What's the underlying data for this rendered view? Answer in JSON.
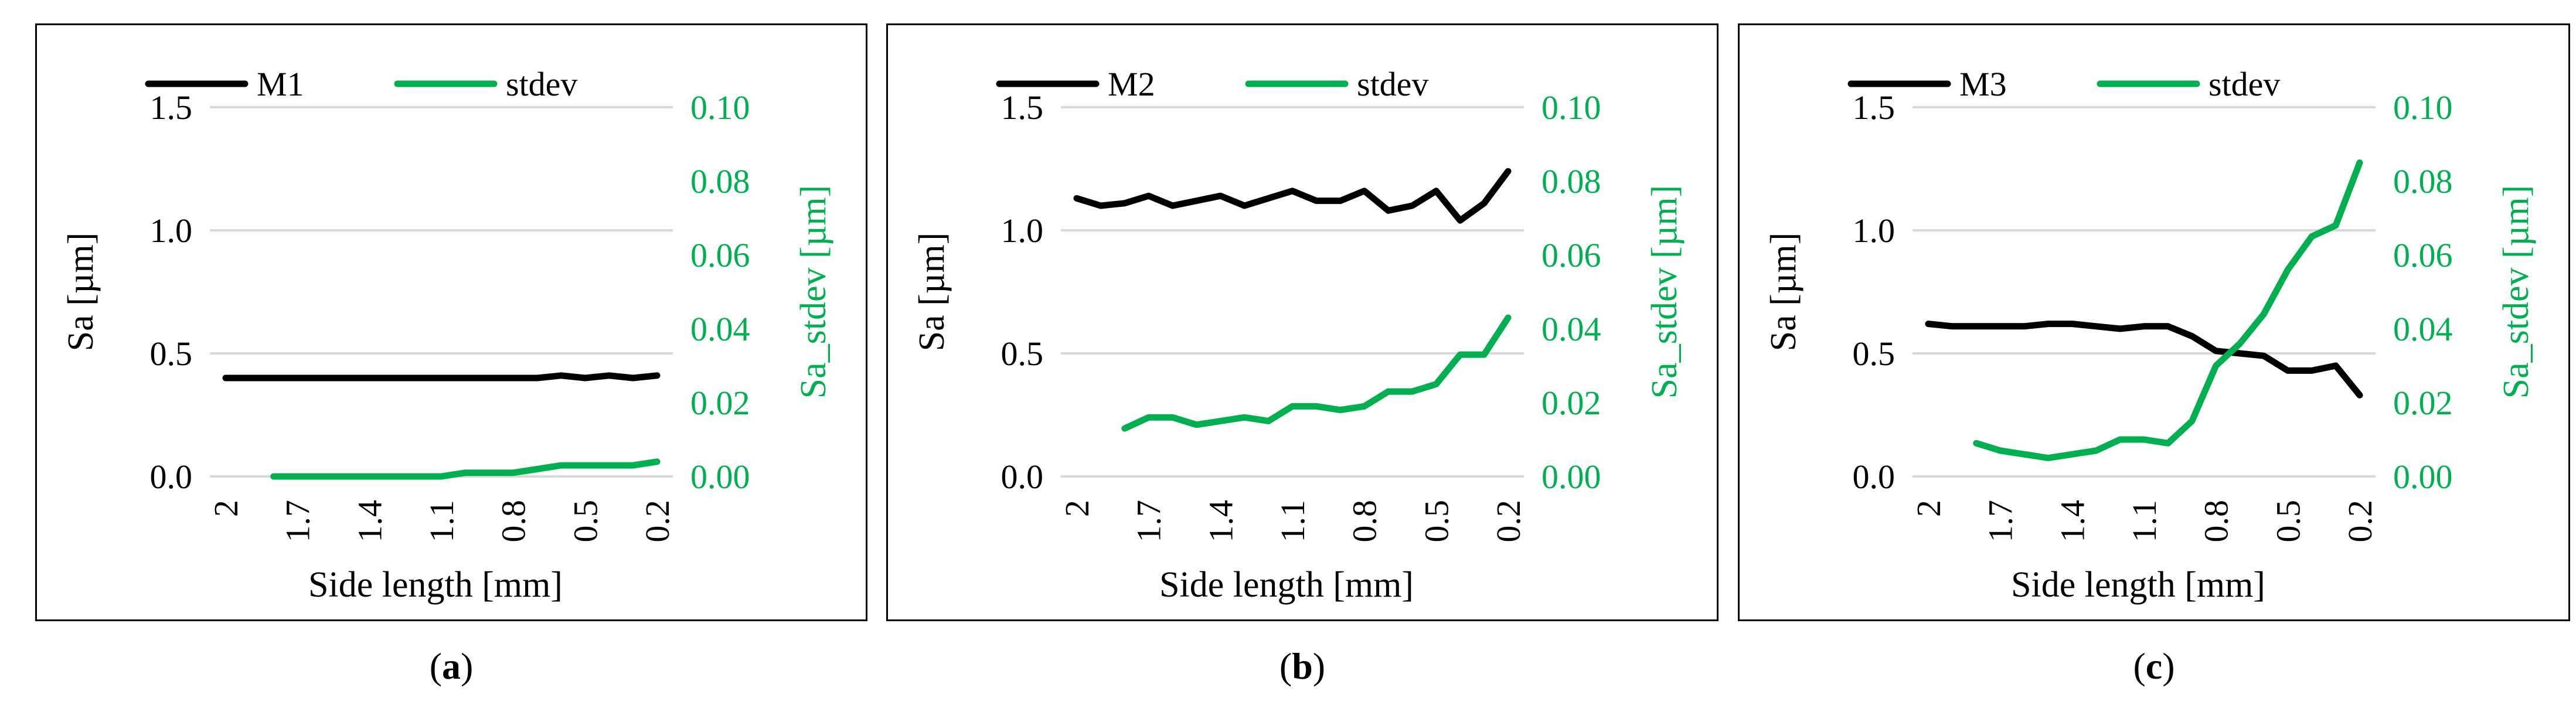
{
  "colors": {
    "main": "#000000",
    "stdev": "#00b050",
    "grid": "#d9d9d9"
  },
  "chart_data": [
    {
      "type": "line",
      "panel": "a",
      "caption": "a",
      "x_ticks": [
        "2",
        "1.7",
        "1.4",
        "1.1",
        "0.8",
        "0.5",
        "0.2"
      ],
      "x": [
        2.0,
        1.9,
        1.8,
        1.7,
        1.6,
        1.5,
        1.4,
        1.3,
        1.2,
        1.1,
        1.0,
        0.9,
        0.8,
        0.7,
        0.6,
        0.5,
        0.4,
        0.3,
        0.2
      ],
      "xlabel": "Side length [mm]",
      "ylabel": "Sa [µm]",
      "ylabel_right": "Sa_stdev [µm]",
      "ylim": [
        0,
        1.5
      ],
      "y_ticks": [
        "0.0",
        "0.5",
        "1.0",
        "1.5"
      ],
      "ylim_right": [
        0,
        0.1
      ],
      "y_ticks_right": [
        "0.00",
        "0.02",
        "0.04",
        "0.06",
        "0.08",
        "0.10"
      ],
      "legend_position": "top",
      "series": [
        {
          "name": "M1",
          "axis": "left",
          "color": "#000000",
          "x": [
            2.0,
            1.9,
            1.8,
            1.7,
            1.6,
            1.5,
            1.4,
            1.3,
            1.2,
            1.1,
            1.0,
            0.9,
            0.8,
            0.7,
            0.6,
            0.5,
            0.4,
            0.3,
            0.2
          ],
          "values": [
            0.4,
            0.4,
            0.4,
            0.4,
            0.4,
            0.4,
            0.4,
            0.4,
            0.4,
            0.4,
            0.4,
            0.4,
            0.4,
            0.4,
            0.41,
            0.4,
            0.41,
            0.4,
            0.41
          ]
        },
        {
          "name": "stdev",
          "axis": "right",
          "color": "#00b050",
          "x": [
            1.8,
            1.7,
            1.6,
            1.5,
            1.4,
            1.3,
            1.2,
            1.1,
            1.0,
            0.9,
            0.8,
            0.7,
            0.6,
            0.5,
            0.4,
            0.3,
            0.2
          ],
          "values": [
            0.0,
            0.0,
            0.0,
            0.0,
            0.0,
            0.0,
            0.0,
            0.0,
            0.001,
            0.001,
            0.001,
            0.002,
            0.003,
            0.003,
            0.003,
            0.003,
            0.004
          ]
        }
      ]
    },
    {
      "type": "line",
      "panel": "b",
      "caption": "b",
      "x_ticks": [
        "2",
        "1.7",
        "1.4",
        "1.1",
        "0.8",
        "0.5",
        "0.2"
      ],
      "x": [
        2.0,
        1.9,
        1.8,
        1.7,
        1.6,
        1.5,
        1.4,
        1.3,
        1.2,
        1.1,
        1.0,
        0.9,
        0.8,
        0.7,
        0.6,
        0.5,
        0.4,
        0.3,
        0.2
      ],
      "xlabel": "Side length [mm]",
      "ylabel": "Sa [µm]",
      "ylabel_right": "Sa_stdev [µm]",
      "ylim": [
        0,
        1.5
      ],
      "y_ticks": [
        "0.0",
        "0.5",
        "1.0",
        "1.5"
      ],
      "ylim_right": [
        0,
        0.1
      ],
      "y_ticks_right": [
        "0.00",
        "0.02",
        "0.04",
        "0.06",
        "0.08",
        "0.10"
      ],
      "legend_position": "top",
      "series": [
        {
          "name": "M2",
          "axis": "left",
          "color": "#000000",
          "x": [
            2.0,
            1.9,
            1.8,
            1.7,
            1.6,
            1.5,
            1.4,
            1.3,
            1.2,
            1.1,
            1.0,
            0.9,
            0.8,
            0.7,
            0.6,
            0.5,
            0.4,
            0.3,
            0.2
          ],
          "values": [
            1.13,
            1.1,
            1.11,
            1.14,
            1.1,
            1.12,
            1.14,
            1.1,
            1.13,
            1.16,
            1.12,
            1.12,
            1.16,
            1.08,
            1.1,
            1.16,
            1.04,
            1.11,
            1.24
          ]
        },
        {
          "name": "stdev",
          "axis": "right",
          "color": "#00b050",
          "x": [
            1.8,
            1.7,
            1.6,
            1.5,
            1.4,
            1.3,
            1.2,
            1.1,
            1.0,
            0.9,
            0.8,
            0.7,
            0.6,
            0.5,
            0.4,
            0.3,
            0.2
          ],
          "values": [
            0.013,
            0.016,
            0.016,
            0.014,
            0.015,
            0.016,
            0.015,
            0.019,
            0.019,
            0.018,
            0.019,
            0.023,
            0.023,
            0.025,
            0.033,
            0.033,
            0.043
          ]
        }
      ]
    },
    {
      "type": "line",
      "panel": "c",
      "caption": "c",
      "x_ticks": [
        "2",
        "1.7",
        "1.4",
        "1.1",
        "0.8",
        "0.5",
        "0.2"
      ],
      "x": [
        2.0,
        1.9,
        1.8,
        1.7,
        1.6,
        1.5,
        1.4,
        1.3,
        1.2,
        1.1,
        1.0,
        0.9,
        0.8,
        0.7,
        0.6,
        0.5,
        0.4,
        0.3,
        0.2
      ],
      "xlabel": "Side length [mm]",
      "ylabel": "Sa [µm]",
      "ylabel_right": "Sa_stdev [µm]",
      "ylim": [
        0,
        1.5
      ],
      "y_ticks": [
        "0.0",
        "0.5",
        "1.0",
        "1.5"
      ],
      "ylim_right": [
        0,
        0.1
      ],
      "y_ticks_right": [
        "0.00",
        "0.02",
        "0.04",
        "0.06",
        "0.08",
        "0.10"
      ],
      "legend_position": "top",
      "series": [
        {
          "name": "M3",
          "axis": "left",
          "color": "#000000",
          "x": [
            2.0,
            1.9,
            1.8,
            1.7,
            1.6,
            1.5,
            1.4,
            1.3,
            1.2,
            1.1,
            1.0,
            0.9,
            0.8,
            0.7,
            0.6,
            0.5,
            0.4,
            0.3,
            0.2
          ],
          "values": [
            0.62,
            0.61,
            0.61,
            0.61,
            0.61,
            0.62,
            0.62,
            0.61,
            0.6,
            0.61,
            0.61,
            0.57,
            0.51,
            0.5,
            0.49,
            0.43,
            0.43,
            0.45,
            0.33
          ]
        },
        {
          "name": "stdev",
          "axis": "right",
          "color": "#00b050",
          "x": [
            1.8,
            1.7,
            1.6,
            1.5,
            1.4,
            1.3,
            1.2,
            1.1,
            1.0,
            0.9,
            0.8,
            0.7,
            0.6,
            0.5,
            0.4,
            0.3,
            0.2
          ],
          "values": [
            0.009,
            0.007,
            0.006,
            0.005,
            0.006,
            0.007,
            0.01,
            0.01,
            0.009,
            0.015,
            0.03,
            0.036,
            0.044,
            0.056,
            0.065,
            0.068,
            0.085
          ]
        }
      ]
    }
  ]
}
